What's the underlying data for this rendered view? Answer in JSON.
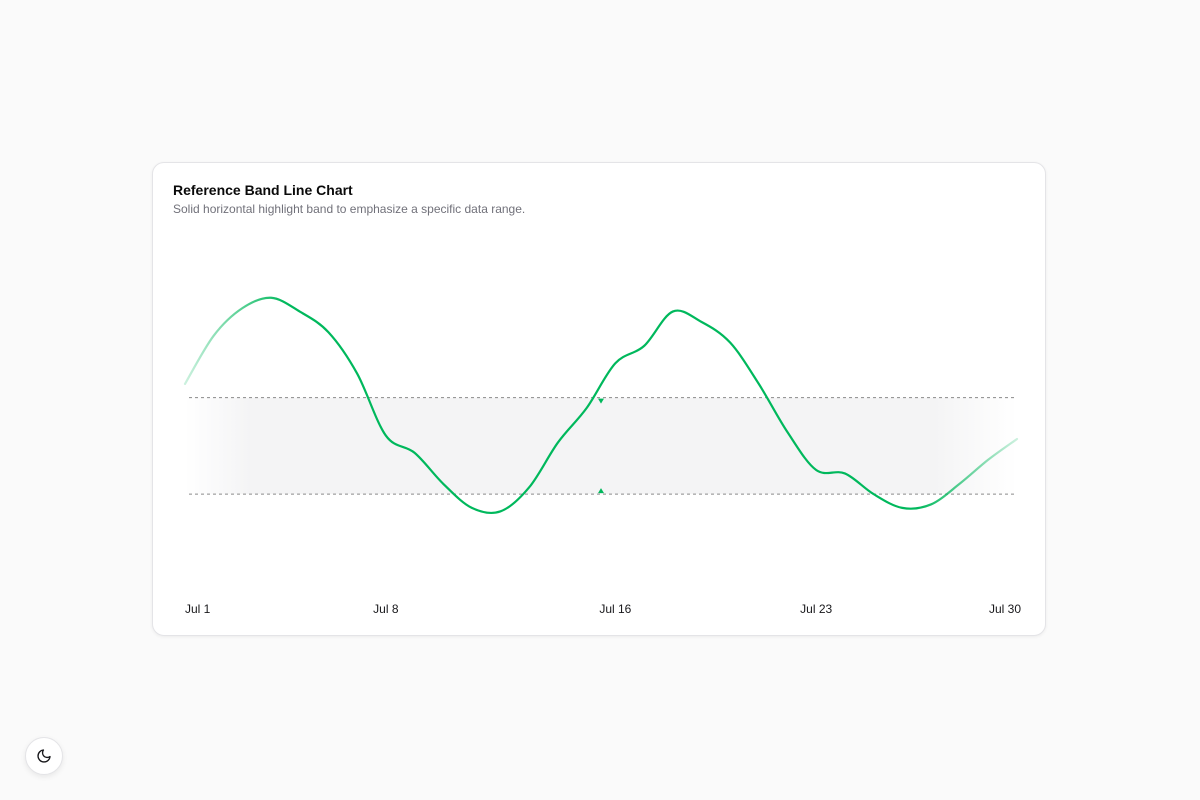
{
  "card": {
    "title": "Reference Band Line Chart",
    "subtitle": "Solid horizontal highlight band to emphasize a specific data range."
  },
  "chart_data": {
    "type": "line",
    "title": "Reference Band Line Chart",
    "subtitle": "Solid horizontal highlight band to emphasize a specific data range.",
    "x_tick_labels": [
      "Jul 1",
      "Jul 8",
      "Jul 16",
      "Jul 23",
      "Jul 30"
    ],
    "x_tick_days": [
      1,
      8,
      16,
      23,
      30
    ],
    "x": [
      1,
      2,
      3,
      4,
      5,
      6,
      7,
      8,
      9,
      10,
      11,
      12,
      13,
      14,
      15,
      16,
      17,
      18,
      19,
      20,
      21,
      22,
      23,
      24,
      25,
      26,
      27,
      28,
      29,
      30
    ],
    "values": [
      62,
      76,
      84,
      87,
      83,
      77,
      65,
      47,
      42,
      33,
      26,
      25,
      32,
      45,
      55,
      68,
      73,
      83,
      80,
      74,
      62,
      48,
      37,
      36,
      30,
      26,
      27,
      33,
      40,
      46
    ],
    "ylim": [
      10,
      100
    ],
    "reference_band": [
      30,
      58
    ],
    "grid": false,
    "line_color": "#00b85c",
    "band_color": "#f4f4f5"
  },
  "icons": {
    "theme_toggle": "moon-icon"
  }
}
